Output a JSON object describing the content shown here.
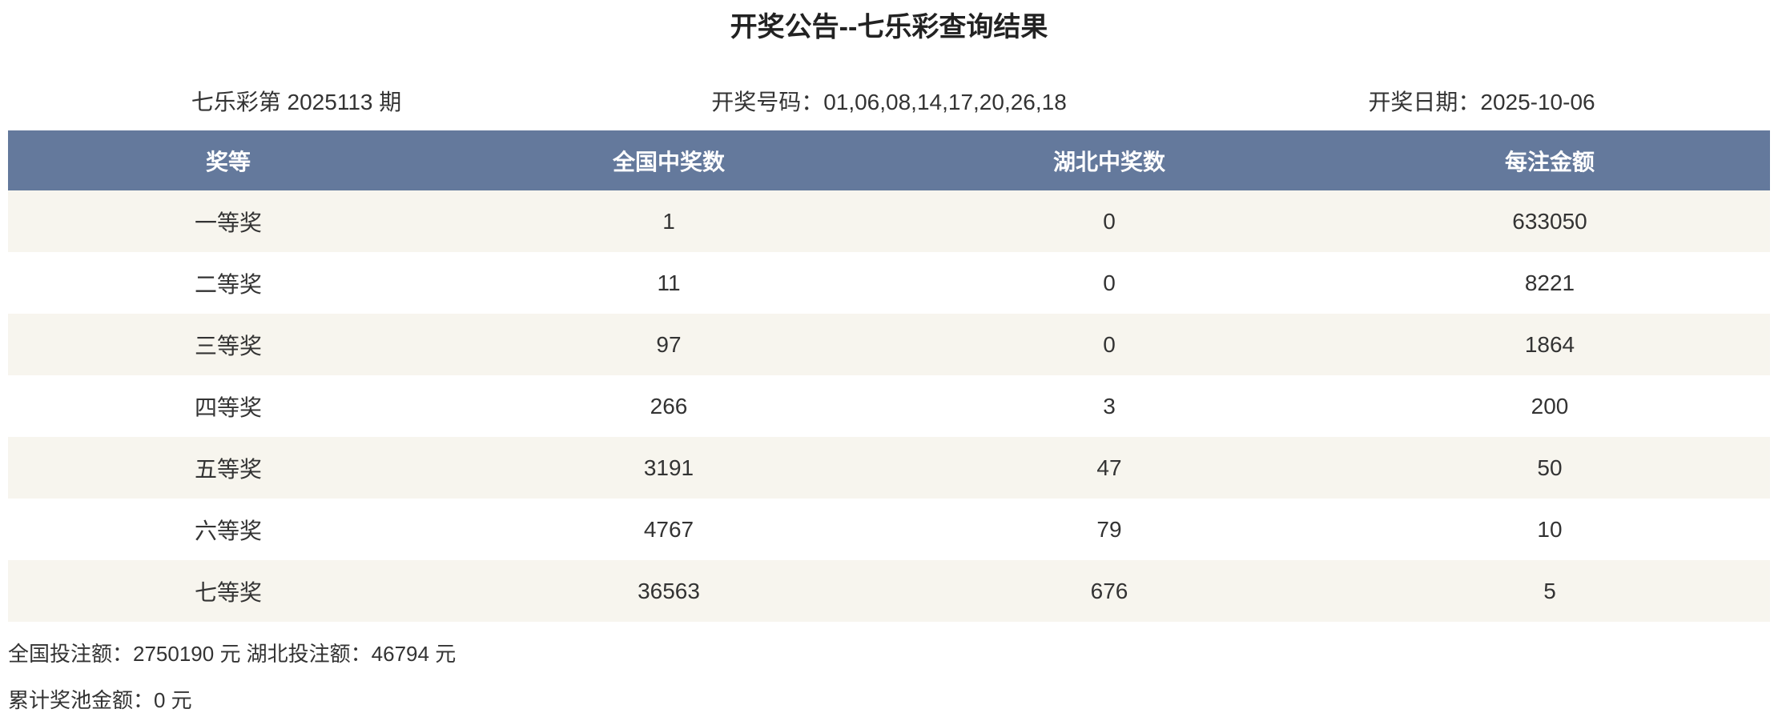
{
  "page": {
    "title": "开奖公告--七乐彩查询结果"
  },
  "info": {
    "issue": "七乐彩第 2025113 期",
    "numbers": "开奖号码：01,06,08,14,17,20,26,18",
    "date": "开奖日期：2025-10-06"
  },
  "table": {
    "headers": [
      "奖等",
      "全国中奖数",
      "湖北中奖数",
      "每注金额"
    ],
    "rows": [
      {
        "tier": "一等奖",
        "national": "1",
        "hubei": "0",
        "prize": "633050"
      },
      {
        "tier": "二等奖",
        "national": "11",
        "hubei": "0",
        "prize": "8221"
      },
      {
        "tier": "三等奖",
        "national": "97",
        "hubei": "0",
        "prize": "1864"
      },
      {
        "tier": "四等奖",
        "national": "266",
        "hubei": "3",
        "prize": "200"
      },
      {
        "tier": "五等奖",
        "national": "3191",
        "hubei": "47",
        "prize": "50"
      },
      {
        "tier": "六等奖",
        "national": "4767",
        "hubei": "79",
        "prize": "10"
      },
      {
        "tier": "七等奖",
        "national": "36563",
        "hubei": "676",
        "prize": "5"
      }
    ]
  },
  "footer": {
    "bets_line": "全国投注额：2750190 元 湖北投注额：46794 元",
    "pool_line": "累计奖池金额：0 元"
  },
  "colors": {
    "header_bg": "#64799C",
    "header_text": "#FFFFFF",
    "row_alt_bg": "#F7F5EE",
    "row_bg": "#FFFFFF",
    "text": "#333333"
  }
}
